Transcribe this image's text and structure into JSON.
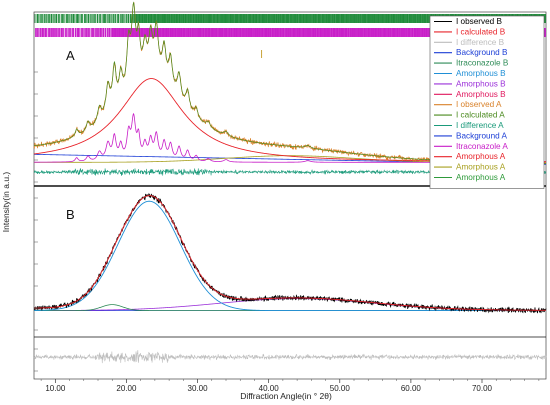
{
  "chart_data": {
    "type": "line",
    "xlabel": "Diffraction Angle(in ° 2θ)",
    "ylabel": "Intensity(in a.u.)",
    "xlim": [
      7,
      79
    ],
    "xticks": [
      10,
      20,
      30,
      40,
      50,
      60,
      70
    ],
    "xtick_labels": [
      "10.00",
      "20.00",
      "30.00",
      "40.00",
      "50.00",
      "60.00",
      "70.00"
    ],
    "panels": [
      "A",
      "B"
    ],
    "legend_placement": "top-right",
    "legend": [
      {
        "label": "I observed B",
        "color": "#000000"
      },
      {
        "label": "I calculated B",
        "color": "#e8242b"
      },
      {
        "label": "I difference B",
        "color": "#bdbdbd"
      },
      {
        "label": "Background B",
        "color": "#1d3fd6"
      },
      {
        "label": "Itraconazole B",
        "color": "#2e8b57"
      },
      {
        "label": "Amorphous B",
        "color": "#1f8fd6"
      },
      {
        "label": "Amorphous B",
        "color": "#9b30d9"
      },
      {
        "label": "Amorphous B",
        "color": "#e0185e"
      },
      {
        "label": "I observed A",
        "color": "#d9822b"
      },
      {
        "label": "I calculated A",
        "color": "#4a8a1e"
      },
      {
        "label": "I difference A",
        "color": "#1a9a7a"
      },
      {
        "label": "Background A",
        "color": "#1d3fd6"
      },
      {
        "label": "Itraconazole A",
        "color": "#c81ec8"
      },
      {
        "label": "Amorphous A",
        "color": "#e8242b"
      },
      {
        "label": "Amorphous A",
        "color": "#a8a020"
      },
      {
        "label": "Amorphous A",
        "color": "#2e9a3a"
      }
    ],
    "series_A": {
      "sharp_peaks": [
        {
          "x": 13.0,
          "y": 0.1,
          "w": 0.25
        },
        {
          "x": 14.6,
          "y": 0.13,
          "w": 0.3
        },
        {
          "x": 16.2,
          "y": 0.22,
          "w": 0.35
        },
        {
          "x": 17.4,
          "y": 0.42,
          "w": 0.35
        },
        {
          "x": 18.3,
          "y": 0.58,
          "w": 0.3
        },
        {
          "x": 19.2,
          "y": 0.36,
          "w": 0.28
        },
        {
          "x": 20.3,
          "y": 0.62,
          "w": 0.3
        },
        {
          "x": 21.0,
          "y": 1.0,
          "w": 0.35
        },
        {
          "x": 21.7,
          "y": 0.52,
          "w": 0.25
        },
        {
          "x": 22.6,
          "y": 0.38,
          "w": 0.3
        },
        {
          "x": 23.4,
          "y": 0.48,
          "w": 0.3
        },
        {
          "x": 24.2,
          "y": 0.62,
          "w": 0.32
        },
        {
          "x": 25.3,
          "y": 0.44,
          "w": 0.3
        },
        {
          "x": 26.2,
          "y": 0.4,
          "w": 0.3
        },
        {
          "x": 27.4,
          "y": 0.34,
          "w": 0.3
        },
        {
          "x": 28.6,
          "y": 0.26,
          "w": 0.3
        },
        {
          "x": 29.8,
          "y": 0.14,
          "w": 0.3
        },
        {
          "x": 31.5,
          "y": 0.08,
          "w": 0.35
        },
        {
          "x": 34.0,
          "y": 0.06,
          "w": 0.4
        },
        {
          "x": 45.5,
          "y": 0.04,
          "w": 0.5
        }
      ],
      "amorphous_A": {
        "center": 23.5,
        "height": 0.63,
        "width": 5.5
      },
      "background_A": {
        "start": 0.08,
        "end": 0.005
      },
      "amorphous_broad": {
        "center": 43.0,
        "height": 0.05,
        "width": 9.0
      }
    },
    "series_B": {
      "amorphous_main": {
        "center": 23.2,
        "height": 0.93,
        "width": 4.4
      },
      "amorphous_broad": {
        "center": 44.0,
        "height": 0.1,
        "width": 11.0
      },
      "amorphous_small": {
        "center": 18.0,
        "height": 0.05,
        "width": 1.5
      },
      "background_B": {
        "start": 0.02,
        "end": 0.02
      }
    },
    "reflection_markers": {
      "row1_color": "#1e8a3a",
      "row2_color": "#c81ec8"
    }
  }
}
